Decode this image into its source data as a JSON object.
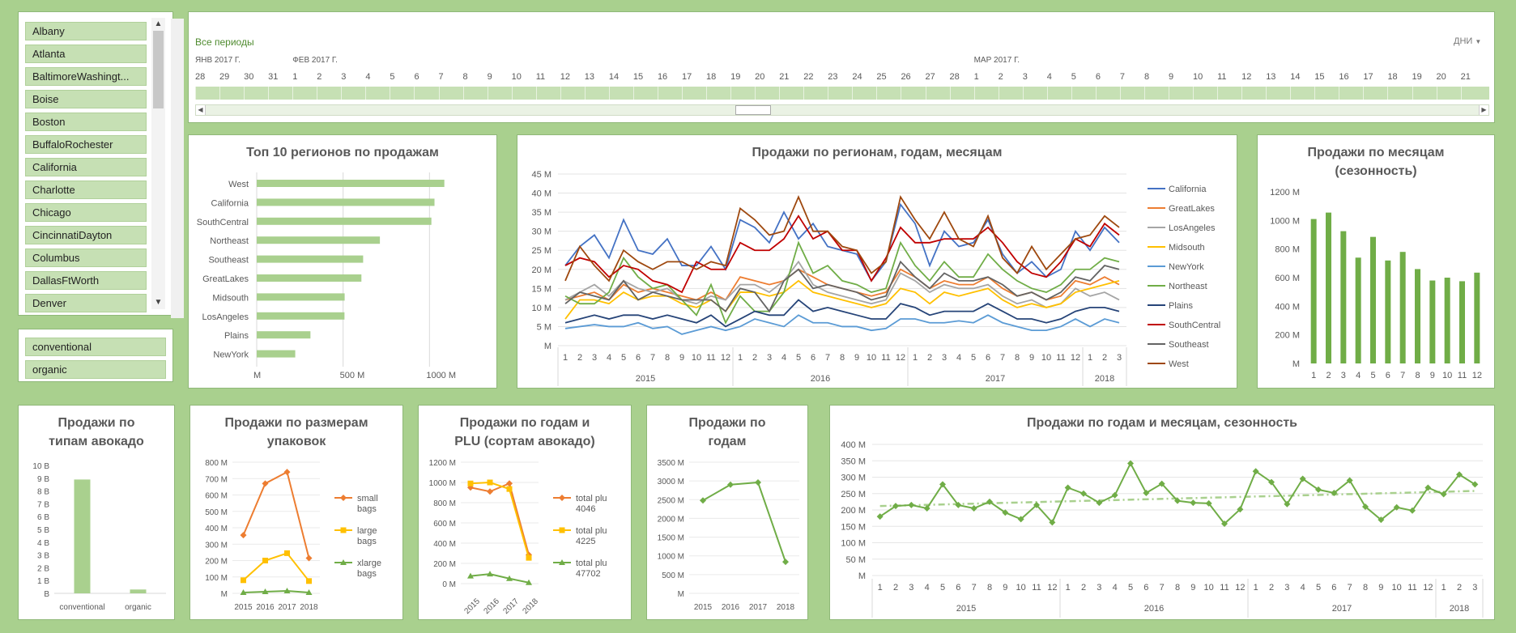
{
  "regions_slicer": {
    "items": [
      "Albany",
      "Atlanta",
      "BaltimoreWashingt...",
      "Boise",
      "Boston",
      "BuffaloRochester",
      "California",
      "Charlotte",
      "Chicago",
      "CincinnatiDayton",
      "Columbus",
      "DallasFtWorth",
      "Denver"
    ]
  },
  "type_slicer": {
    "items": [
      "conventional",
      "organic"
    ]
  },
  "timeline": {
    "filter_label": "Все периоды",
    "level_label": "ДНИ",
    "month_labels": [
      {
        "label": "ЯНВ 2017 Г.",
        "at_day": 0
      },
      {
        "label": "ФЕВ 2017 Г.",
        "at_day": 4
      },
      {
        "label": "МАР 2017 Г.",
        "at_day": 32
      }
    ],
    "days": [
      "28",
      "29",
      "30",
      "31",
      "1",
      "2",
      "3",
      "4",
      "5",
      "6",
      "7",
      "8",
      "9",
      "10",
      "11",
      "12",
      "13",
      "14",
      "15",
      "16",
      "17",
      "18",
      "19",
      "20",
      "21",
      "22",
      "23",
      "24",
      "25",
      "26",
      "27",
      "28",
      "1",
      "2",
      "3",
      "4",
      "5",
      "6",
      "7",
      "8",
      "9",
      "10",
      "11",
      "12",
      "13",
      "14",
      "15",
      "16",
      "17",
      "18",
      "19",
      "20",
      "21"
    ]
  },
  "colors": {
    "accent": "#70ad47",
    "bar_light": "#a9d08e",
    "panel_border": "#8fb878"
  },
  "charts": {
    "top10": {
      "title": "Топ 10 регионов по продажам",
      "chart_data": {
        "type": "bar",
        "orientation": "horizontal",
        "categories": [
          "West",
          "California",
          "SouthCentral",
          "Northeast",
          "Southeast",
          "GreatLakes",
          "Midsouth",
          "LosAngeles",
          "Plains",
          "NewYork"
        ],
        "values": [
          1086,
          1029,
          1011,
          713,
          616,
          606,
          509,
          508,
          311,
          223
        ],
        "xlim": [
          0,
          1200
        ],
        "tick_labels": [
          {
            "v": 0,
            "t": "M"
          },
          {
            "v": 500,
            "t": "500  M"
          },
          {
            "v": 1000,
            "t": "1000  M"
          }
        ]
      }
    },
    "regions": {
      "title": "Продажи по регионам, годам, месяцам",
      "chart_data": {
        "type": "line",
        "months": [
          "1",
          "2",
          "3",
          "4",
          "5",
          "6",
          "7",
          "8",
          "9",
          "10",
          "11",
          "12",
          "1",
          "2",
          "3",
          "4",
          "5",
          "6",
          "7",
          "8",
          "9",
          "10",
          "11",
          "12",
          "1",
          "2",
          "3",
          "4",
          "5",
          "6",
          "7",
          "8",
          "9",
          "10",
          "11",
          "12",
          "1",
          "2",
          "3"
        ],
        "years": [
          {
            "label": "2015",
            "span": 12
          },
          {
            "label": "2016",
            "span": 12
          },
          {
            "label": "2017",
            "span": 12
          },
          {
            "label": "2018",
            "span": 3
          }
        ],
        "y_ticks": [
          "M",
          "5  M",
          "10  M",
          "15  M",
          "20  M",
          "25  M",
          "30  M",
          "35  M",
          "40  M",
          "45  M"
        ],
        "ylim": [
          0,
          45
        ],
        "series": [
          {
            "name": "California",
            "color": "#4472c4",
            "values": [
              21,
              26,
              29,
              23,
              33,
              25,
              24,
              28,
              21,
              21,
              26,
              20,
              33,
              31,
              27,
              35,
              28,
              32,
              26,
              25,
              24,
              17,
              22,
              37,
              32,
              21,
              30,
              26,
              27,
              33,
              24,
              19,
              22,
              18,
              20,
              30,
              25,
              31,
              27
            ]
          },
          {
            "name": "GreatLakes",
            "color": "#ed7d31",
            "values": [
              12,
              13,
              14,
              12,
              16,
              14,
              15,
              14,
              13,
              12,
              14,
              12,
              18,
              17,
              16,
              17,
              20,
              18,
              16,
              15,
              14,
              13,
              14,
              20,
              18,
              15,
              17,
              16,
              16,
              18,
              15,
              13,
              14,
              12,
              13,
              17,
              16,
              18,
              16
            ]
          },
          {
            "name": "LosAngeles",
            "color": "#a5a5a5",
            "values": [
              12,
              14,
              16,
              13,
              17,
              15,
              14,
              15,
              12,
              11,
              13,
              12,
              16,
              16,
              14,
              17,
              22,
              16,
              14,
              13,
              12,
              11,
              12,
              19,
              17,
              14,
              16,
              15,
              15,
              16,
              13,
              11,
              12,
              10,
              11,
              15,
              13,
              14,
              12
            ]
          },
          {
            "name": "Midsouth",
            "color": "#ffc000",
            "values": [
              7,
              12,
              12,
              11,
              14,
              12,
              13,
              13,
              11,
              10,
              12,
              9,
              14,
              14,
              13,
              14,
              17,
              14,
              13,
              12,
              11,
              10,
              11,
              15,
              14,
              11,
              14,
              13,
              14,
              15,
              12,
              10,
              11,
              10,
              11,
              14,
              15,
              16,
              17
            ]
          },
          {
            "name": "NewYork",
            "color": "#5b9bd5",
            "values": [
              4.5,
              5,
              5.5,
              5,
              5,
              6,
              4.5,
              5,
              3,
              4,
              5,
              4,
              5,
              7,
              6,
              5,
              8,
              6,
              6,
              5,
              5,
              4,
              4.5,
              7,
              7,
              6,
              6,
              6.5,
              6,
              8,
              6,
              5,
              4,
              4,
              5,
              7,
              5,
              7,
              6
            ]
          },
          {
            "name": "Northeast",
            "color": "#70ad47",
            "values": [
              13,
              11,
              11,
              14,
              23,
              18,
              15,
              16,
              12,
              8,
              16,
              6,
              13,
              9,
              9,
              14,
              27,
              19,
              21,
              17,
              16,
              14,
              15,
              27,
              21,
              17,
              22,
              18,
              18,
              24,
              20,
              17,
              15,
              14,
              16,
              20,
              20,
              23,
              22
            ]
          },
          {
            "name": "Plains",
            "color": "#264478",
            "values": [
              6,
              7,
              8,
              7,
              8,
              8,
              7,
              8,
              7,
              6,
              8,
              5,
              7,
              9,
              8,
              8,
              12,
              9,
              10,
              9,
              8,
              7,
              7,
              11,
              10,
              8,
              9,
              9,
              9,
              11,
              9,
              7,
              7,
              6,
              7,
              9,
              10,
              10,
              9
            ]
          },
          {
            "name": "SouthCentral",
            "color": "#c00000",
            "values": [
              21,
              23,
              22,
              18,
              21,
              20,
              17,
              16,
              14,
              22,
              20,
              20,
              27,
              25,
              25,
              28,
              34,
              28,
              30,
              25,
              25,
              17,
              23,
              31,
              27,
              27,
              28,
              28,
              28,
              31,
              27,
              22,
              19,
              18,
              22,
              28,
              26,
              32,
              29
            ]
          },
          {
            "name": "Southeast",
            "color": "#636363",
            "values": [
              11,
              14,
              13,
              12,
              17,
              12,
              14,
              13,
              12,
              12,
              12,
              9,
              15,
              14,
              9,
              17,
              20,
              15,
              16,
              15,
              14,
              12,
              13,
              22,
              18,
              15,
              19,
              17,
              17,
              18,
              16,
              13,
              14,
              12,
              14,
              18,
              17,
              21,
              20
            ]
          },
          {
            "name": "West",
            "color": "#9e480e",
            "values": [
              17,
              26,
              21,
              17,
              25,
              22,
              20,
              22,
              22,
              20,
              22,
              21,
              36,
              33,
              29,
              30,
              39,
              30,
              30,
              26,
              25,
              19,
              22,
              39,
              33,
              28,
              35,
              28,
              26,
              34,
              23,
              19,
              26,
              20,
              24,
              28,
              29,
              34,
              31
            ]
          }
        ]
      }
    },
    "months": {
      "title_line1": "Продажи по месяцам",
      "title_line2": "(сезонность)",
      "chart_data": {
        "type": "bar",
        "categories": [
          "1",
          "2",
          "3",
          "4",
          "5",
          "6",
          "7",
          "8",
          "9",
          "10",
          "11",
          "12"
        ],
        "values": [
          1010,
          1055,
          925,
          740,
          885,
          720,
          780,
          660,
          580,
          600,
          575,
          635
        ],
        "ylim": [
          0,
          1200
        ],
        "y_ticks": [
          "M",
          "200  M",
          "400  M",
          "600  M",
          "800  M",
          "1000  M",
          "1200  M"
        ]
      }
    },
    "types": {
      "title_line1": "Продажи по",
      "title_line2": "типам авокадо",
      "chart_data": {
        "type": "bar",
        "categories": [
          "conventional",
          "organic"
        ],
        "values": [
          8.9,
          0.3
        ],
        "ylim": [
          0,
          10
        ],
        "y_ticks": [
          "B",
          "1  B",
          "2  B",
          "3  B",
          "4  B",
          "5  B",
          "6  B",
          "7  B",
          "8  B",
          "9  B",
          "10  B"
        ]
      }
    },
    "bags": {
      "title_line1": "Продажи по размерам",
      "title_line2": "упаковок",
      "chart_data": {
        "type": "line",
        "categories": [
          "2015",
          "2016",
          "2017",
          "2018"
        ],
        "ylim": [
          0,
          800
        ],
        "y_ticks": [
          "M",
          "100  M",
          "200  M",
          "300  M",
          "400  M",
          "500  M",
          "600  M",
          "700  M",
          "800  M"
        ],
        "series": [
          {
            "name": "small bags",
            "name_lines": [
              "small",
              "bags"
            ],
            "color": "#ed7d31",
            "marker": "diamond",
            "values": [
              355,
              670,
              740,
              215
            ]
          },
          {
            "name": "large bags",
            "name_lines": [
              "large",
              "bags"
            ],
            "color": "#ffc000",
            "marker": "square",
            "values": [
              80,
              200,
              245,
              75
            ]
          },
          {
            "name": "xlarge bags",
            "name_lines": [
              "xlarge",
              "bags"
            ],
            "color": "#70ad47",
            "marker": "triangle",
            "values": [
              5,
              10,
              15,
              5
            ]
          }
        ]
      }
    },
    "plu": {
      "title_line1": "Продажи по годам и",
      "title_line2": "PLU (сортам авокадо)",
      "chart_data": {
        "type": "line",
        "categories": [
          "2015",
          "2016",
          "2017",
          "2018"
        ],
        "ylim": [
          0,
          1200
        ],
        "y_ticks": [
          "0  M",
          "200  M",
          "400  M",
          "600  M",
          "800  M",
          "1000  M",
          "1200  M"
        ],
        "series": [
          {
            "name": "total plu 4046",
            "name_lines": [
              "total plu",
              "4046"
            ],
            "color": "#ed7d31",
            "marker": "diamond",
            "values": [
              950,
              910,
              990,
              285
            ]
          },
          {
            "name": "total plu 4225",
            "name_lines": [
              "total plu",
              "4225"
            ],
            "color": "#ffc000",
            "marker": "square",
            "values": [
              990,
              1000,
              935,
              255
            ]
          },
          {
            "name": "total plu 47702",
            "name_lines": [
              "total plu",
              "47702"
            ],
            "color": "#70ad47",
            "marker": "triangle",
            "values": [
              75,
              95,
              50,
              10
            ]
          }
        ]
      }
    },
    "years": {
      "title_line1": "Продажи по",
      "title_line2": "годам",
      "chart_data": {
        "type": "line",
        "categories": [
          "2015",
          "2016",
          "2017",
          "2018"
        ],
        "values": [
          2480,
          2900,
          2960,
          840
        ],
        "ylim": [
          0,
          3500
        ],
        "y_ticks": [
          "M",
          "500  M",
          "1000  M",
          "1500  M",
          "2000  M",
          "2500  M",
          "3000  M",
          "3500  M"
        ]
      }
    },
    "seasonal": {
      "title": "Продажи по годам и месяцам, сезонность",
      "chart_data": {
        "type": "line",
        "months": [
          "1",
          "2",
          "3",
          "4",
          "5",
          "6",
          "7",
          "8",
          "9",
          "10",
          "11",
          "12",
          "1",
          "2",
          "3",
          "4",
          "5",
          "6",
          "7",
          "8",
          "9",
          "10",
          "11",
          "12",
          "1",
          "2",
          "3",
          "4",
          "5",
          "6",
          "7",
          "8",
          "9",
          "10",
          "11",
          "12",
          "1",
          "2",
          "3"
        ],
        "years": [
          {
            "label": "2015",
            "span": 12
          },
          {
            "label": "2016",
            "span": 12
          },
          {
            "label": "2017",
            "span": 12
          },
          {
            "label": "2018",
            "span": 3
          }
        ],
        "values": [
          180,
          212,
          215,
          205,
          278,
          215,
          205,
          225,
          192,
          172,
          215,
          162,
          268,
          250,
          222,
          245,
          342,
          252,
          280,
          228,
          222,
          220,
          158,
          202,
          318,
          285,
          218,
          295,
          262,
          252,
          290,
          210,
          170,
          208,
          198,
          268,
          248,
          308,
          278
        ],
        "trend": [
          212,
          258
        ],
        "ylim": [
          0,
          400
        ],
        "y_ticks": [
          "M",
          "50  M",
          "100  M",
          "150  M",
          "200  M",
          "250  M",
          "300  M",
          "350  M",
          "400  M"
        ]
      }
    }
  }
}
